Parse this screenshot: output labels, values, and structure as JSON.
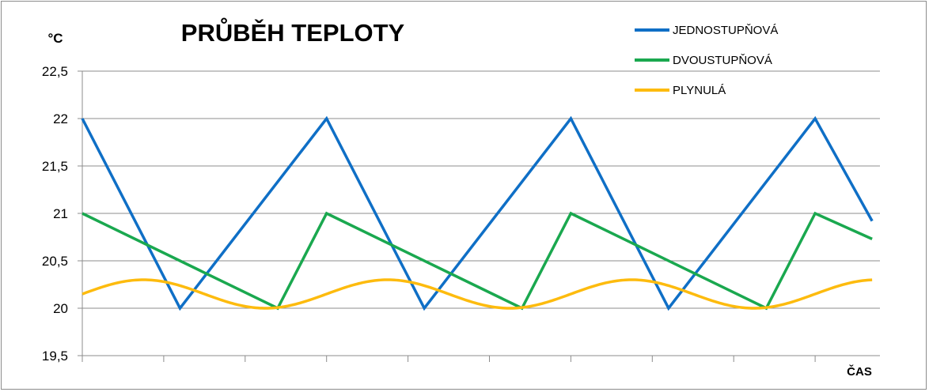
{
  "chart_data": {
    "type": "line",
    "title": "PRŮBĚH TEPLOTY",
    "ylabel": "°C",
    "xlabel": "ČAS",
    "ylim": [
      19.5,
      22.5
    ],
    "yticks": [
      19.5,
      20,
      20.5,
      21,
      21.5,
      22,
      22.5
    ],
    "ytick_labels": [
      "19,5",
      "20",
      "20,5",
      "21",
      "21,5",
      "22",
      "22,5"
    ],
    "xlim": [
      0,
      97
    ],
    "xticks": [
      0,
      10,
      20,
      30,
      40,
      50,
      60,
      70,
      80,
      90
    ],
    "grid": true,
    "legend_position": "top-right",
    "series": [
      {
        "name": "JEDNOSTUPŇOVÁ",
        "color": "#0f6fc6",
        "x": [
          0,
          12,
          30,
          42,
          60,
          72,
          90,
          97
        ],
        "y": [
          22,
          20,
          22,
          20,
          22,
          20,
          22,
          20.92
        ]
      },
      {
        "name": "DVOUSTUPŇOVÁ",
        "color": "#1aa84f",
        "x": [
          0,
          24,
          30,
          54,
          60,
          84,
          90,
          97
        ],
        "y": [
          21,
          20,
          21,
          20,
          21,
          20,
          21,
          20.73
        ]
      },
      {
        "name": "PLYNULÁ",
        "color": "#fdbb0e",
        "x": [
          0,
          7.5,
          22.5,
          37.5,
          52.5,
          67.5,
          82.5,
          97
        ],
        "y": [
          20.15,
          20.3,
          20.0,
          20.3,
          20.0,
          20.3,
          20.0,
          20.3
        ],
        "curve": "sine",
        "period": 30,
        "center": 20.15,
        "amplitude": 0.15
      }
    ]
  }
}
